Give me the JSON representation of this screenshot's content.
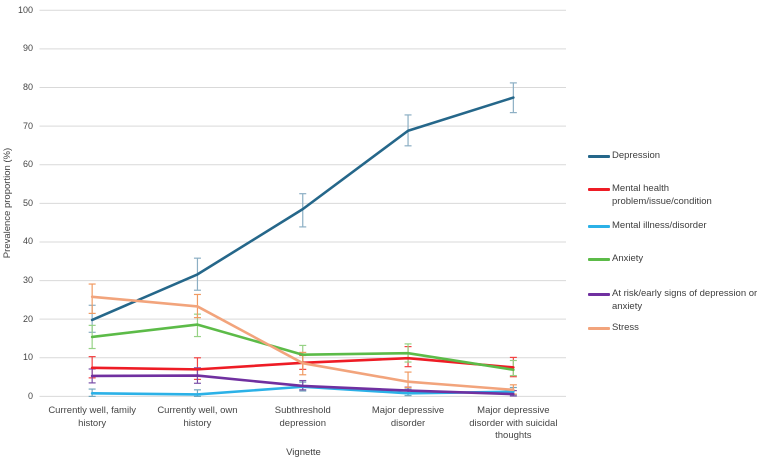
{
  "chart": {
    "ylabel": "Prevalence proportion (%)",
    "xlabel": "Vignette"
  },
  "chart_data": {
    "type": "line",
    "title": "",
    "xlabel": "Vignette",
    "ylabel": "Prevalence proportion (%)",
    "ylim": [
      0,
      100
    ],
    "ytick_step": 10,
    "grid": "horizontal",
    "legend_position": "right",
    "error_bars": true,
    "gridline_color": "#d9d9d9",
    "categories": [
      "Currently well, family history",
      "Currently well, own history",
      "Subthreshold depression",
      "Major depressive disorder",
      "Major depressive disorder with suicidal thoughts"
    ],
    "category_display": [
      "Currently well, family\nhistory",
      "Currently well, own\nhistory",
      "Subthreshold\ndepression",
      "Major depressive\ndisorder",
      "Major depressive\ndisorder with suicidal\nthoughts"
    ],
    "series": [
      {
        "name": "Depression",
        "legend_display": "Depression",
        "color": "#25678a",
        "error_color": "#8cafc4",
        "values": [
          19.8,
          31.6,
          48.5,
          68.8,
          77.4
        ],
        "error_ranges": [
          [
            16.6,
            23.6
          ],
          [
            27.5,
            35.8
          ],
          [
            43.9,
            52.5
          ],
          [
            64.9,
            72.9
          ],
          [
            73.5,
            81.2
          ]
        ]
      },
      {
        "name": "Mental health problem/issue/condition",
        "legend_display": "Mental health\nproblem/issue/condition",
        "color": "#ee1c25",
        "error_color": "#f24343",
        "values": [
          7.4,
          7.0,
          8.7,
          9.9,
          7.5
        ],
        "error_ranges": [
          [
            4.8,
            10.3
          ],
          [
            4.4,
            10.0
          ],
          [
            7.0,
            10.6
          ],
          [
            7.7,
            12.9
          ],
          [
            5.1,
            10.1
          ]
        ]
      },
      {
        "name": "Mental illness/disorder",
        "legend_display": "Mental illness/disorder",
        "color": "#2bb1e7",
        "error_color": "#73a7bd",
        "values": [
          0.8,
          0.5,
          2.5,
          0.8,
          1.2
        ],
        "error_ranges": [
          [
            0.0,
            1.9
          ],
          [
            0.0,
            1.7
          ],
          [
            1.4,
            3.7
          ],
          [
            0.2,
            1.9
          ],
          [
            0.4,
            2.3
          ]
        ]
      },
      {
        "name": "Anxiety",
        "legend_display": "Anxiety",
        "color": "#5cbb48",
        "error_color": "#96d285",
        "values": [
          15.4,
          18.6,
          10.8,
          11.2,
          6.9
        ],
        "error_ranges": [
          [
            12.4,
            18.4
          ],
          [
            15.5,
            21.3
          ],
          [
            8.8,
            13.2
          ],
          [
            8.9,
            13.6
          ],
          [
            5.4,
            9.3
          ]
        ]
      },
      {
        "name": "At risk/early signs of depression or anxiety",
        "legend_display": "At risk/early signs of depression or\nanxiety",
        "color": "#7030a0",
        "error_color": "#7a4fa8",
        "values": [
          5.3,
          5.4,
          2.7,
          1.5,
          0.6
        ],
        "error_ranges": [
          [
            3.5,
            7.1
          ],
          [
            3.4,
            7.4
          ],
          [
            1.7,
            4.1
          ],
          [
            0.7,
            2.4
          ],
          [
            0.1,
            1.5
          ]
        ]
      },
      {
        "name": "Stress",
        "legend_display": "Stress",
        "color": "#f2a47c",
        "error_color": "#f09a62",
        "values": [
          25.8,
          23.3,
          8.6,
          3.8,
          1.7
        ],
        "error_ranges": [
          [
            21.5,
            29.1
          ],
          [
            20.4,
            26.4
          ],
          [
            5.6,
            11.4
          ],
          [
            2.3,
            6.3
          ],
          [
            0.6,
            3.0
          ]
        ]
      }
    ]
  }
}
